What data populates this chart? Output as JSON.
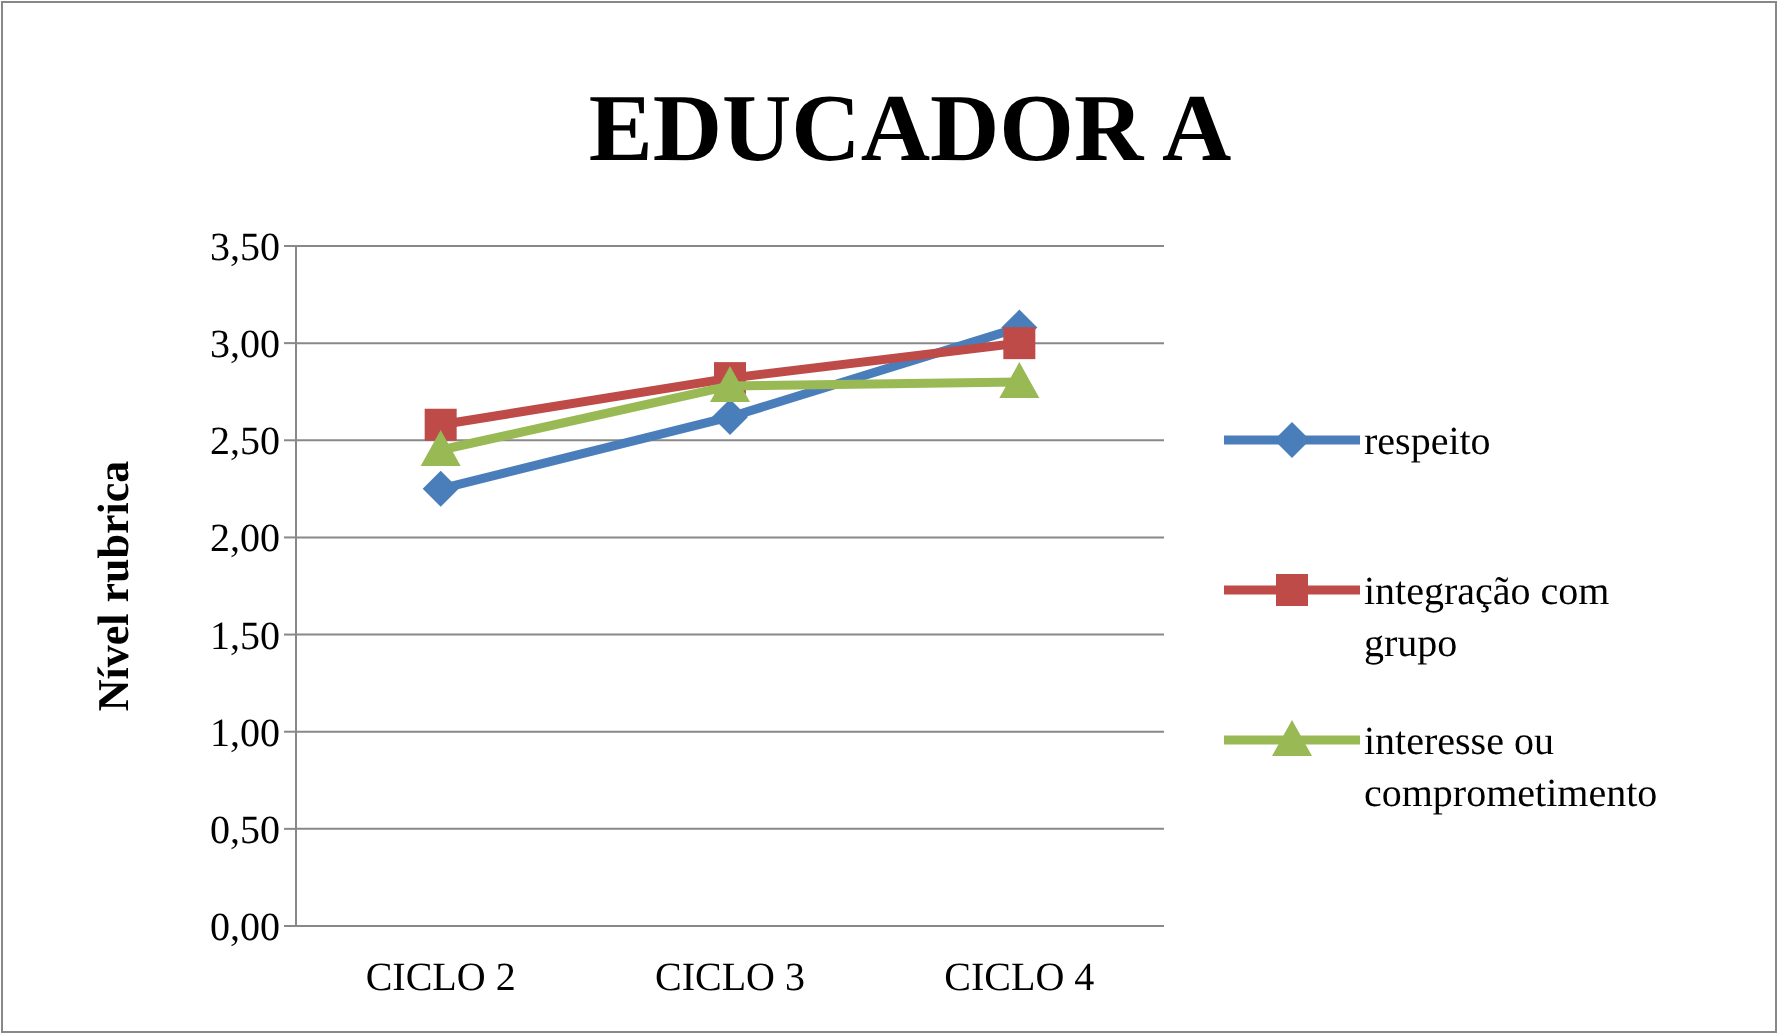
{
  "chart_data": {
    "type": "line",
    "title": "EDUCADOR A",
    "ylabel": "Nível rubrica",
    "categories": [
      "CICLO 2",
      "CICLO 3",
      "CICLO 4"
    ],
    "series": [
      {
        "name": "respeito",
        "color": "#4a7ebb",
        "values": [
          2.25,
          2.62,
          3.08
        ],
        "marker": "diamond"
      },
      {
        "name": "integração com grupo",
        "color": "#be4b48",
        "values": [
          2.58,
          2.82,
          3.0
        ],
        "marker": "square"
      },
      {
        "name": "interesse ou comprometimento",
        "color": "#98b954",
        "values": [
          2.45,
          2.78,
          2.8
        ],
        "marker": "triangle"
      }
    ],
    "ylim": [
      0,
      3.5
    ],
    "yticks": [
      {
        "value": 0,
        "label": "0,00"
      },
      {
        "value": 0.5,
        "label": "0,50"
      },
      {
        "value": 1,
        "label": "1,00"
      },
      {
        "value": 1.5,
        "label": "1,50"
      },
      {
        "value": 2,
        "label": "2,00"
      },
      {
        "value": 2.5,
        "label": "2,50"
      },
      {
        "value": 3,
        "label": "3,00"
      },
      {
        "value": 3.5,
        "label": "3,50"
      }
    ],
    "grid": "y",
    "legend": "right"
  }
}
